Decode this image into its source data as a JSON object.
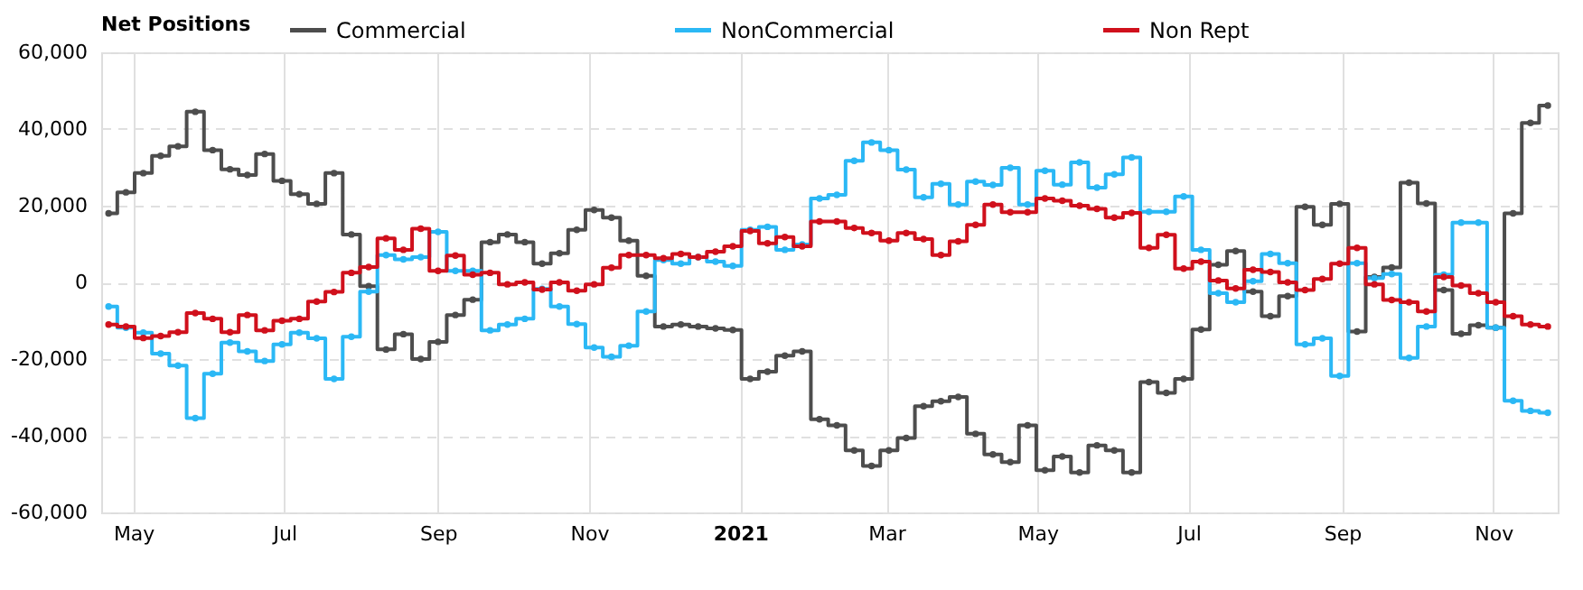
{
  "chart_data": {
    "type": "step",
    "legend_title": "Net Positions",
    "legend": "top",
    "grid": true,
    "marker": "circle",
    "line_style": "solid",
    "x": [
      "2020-04-21",
      "2020-04-28",
      "2020-05-05",
      "2020-05-12",
      "2020-05-19",
      "2020-05-26",
      "2020-06-02",
      "2020-06-09",
      "2020-06-16",
      "2020-06-23",
      "2020-06-30",
      "2020-07-07",
      "2020-07-14",
      "2020-07-21",
      "2020-07-28",
      "2020-08-04",
      "2020-08-11",
      "2020-08-18",
      "2020-08-25",
      "2020-09-01",
      "2020-09-08",
      "2020-09-15",
      "2020-09-22",
      "2020-09-29",
      "2020-10-06",
      "2020-10-13",
      "2020-10-20",
      "2020-10-27",
      "2020-11-03",
      "2020-11-10",
      "2020-11-17",
      "2020-11-24",
      "2020-12-01",
      "2020-12-08",
      "2020-12-15",
      "2020-12-22",
      "2020-12-29",
      "2021-01-05",
      "2021-01-12",
      "2021-01-19",
      "2021-01-26",
      "2021-02-02",
      "2021-02-09",
      "2021-02-16",
      "2021-02-23",
      "2021-03-02",
      "2021-03-09",
      "2021-03-16",
      "2021-03-23",
      "2021-03-30",
      "2021-04-06",
      "2021-04-13",
      "2021-04-20",
      "2021-04-27",
      "2021-05-04",
      "2021-05-11",
      "2021-05-18",
      "2021-05-25",
      "2021-06-01",
      "2021-06-08",
      "2021-06-15",
      "2021-06-22",
      "2021-06-29",
      "2021-07-06",
      "2021-07-13",
      "2021-07-20",
      "2021-07-27",
      "2021-08-03",
      "2021-08-10",
      "2021-08-17",
      "2021-08-24",
      "2021-08-31",
      "2021-09-07",
      "2021-09-14",
      "2021-09-21",
      "2021-09-28",
      "2021-10-05",
      "2021-10-12",
      "2021-10-19",
      "2021-10-26",
      "2021-11-02",
      "2021-11-09",
      "2021-11-16",
      "2021-11-23"
    ],
    "xlim": [
      "2020-04-18",
      "2021-11-27"
    ],
    "xticks": [
      {
        "value": "2020-05-01",
        "label": "May"
      },
      {
        "value": "2020-07-01",
        "label": "Jul"
      },
      {
        "value": "2020-09-01",
        "label": "Sep"
      },
      {
        "value": "2020-11-01",
        "label": "Nov"
      },
      {
        "value": "2021-01-01",
        "label": "2021"
      },
      {
        "value": "2021-03-01",
        "label": "Mar"
      },
      {
        "value": "2021-05-01",
        "label": "May"
      },
      {
        "value": "2021-07-01",
        "label": "Jul"
      },
      {
        "value": "2021-09-01",
        "label": "Sep"
      },
      {
        "value": "2021-11-01",
        "label": "Nov"
      }
    ],
    "ylim": [
      -60000,
      60000
    ],
    "yticks": [
      {
        "value": -60000,
        "label": "-60,000"
      },
      {
        "value": -40000,
        "label": "-40,000"
      },
      {
        "value": -20000,
        "label": "-20,000"
      },
      0,
      {
        "value": 20000,
        "label": "20,000"
      },
      {
        "value": 40000,
        "label": "40,000"
      },
      {
        "value": 60000,
        "label": "60,000"
      }
    ],
    "series": [
      {
        "name": "Commercial",
        "color": "#4d4d4d",
        "values": [
          18000,
          23500,
          28500,
          33000,
          35500,
          44500,
          34500,
          29500,
          28000,
          33500,
          26500,
          23000,
          20500,
          28500,
          12500,
          -1000,
          -17500,
          -13500,
          -20000,
          -15500,
          -8500,
          -4500,
          10500,
          12500,
          10500,
          4900,
          7600,
          13700,
          18900,
          16900,
          10900,
          1700,
          -11500,
          -11000,
          -11500,
          -12000,
          -12400,
          -25200,
          -23300,
          -19100,
          -18000,
          -35700,
          -37300,
          -43800,
          -47900,
          -43800,
          -40600,
          -32300,
          -31000,
          -29900,
          -39500,
          -44900,
          -46900,
          -37300,
          -49000,
          -45400,
          -49600,
          -42500,
          -43800,
          -49600,
          -26000,
          -28800,
          -25200,
          -12300,
          4600,
          8200,
          -2400,
          -8800,
          -3600,
          19700,
          15000,
          20500,
          -12800,
          1400,
          3900,
          26000,
          20600,
          -2000,
          -13400,
          -11200,
          -11800,
          18000,
          41600,
          46100
        ]
      },
      {
        "name": "NonCommercial",
        "color": "#2bb8f5",
        "values": [
          -6300,
          -11800,
          -13100,
          -18600,
          -21700,
          -35400,
          -23800,
          -15700,
          -18000,
          -20500,
          -16200,
          -13100,
          -14600,
          -25200,
          -14200,
          -2400,
          7100,
          6000,
          6600,
          13200,
          3000,
          3000,
          -12500,
          -11000,
          -9500,
          -1700,
          -6300,
          -10900,
          -17000,
          -19400,
          -16500,
          -7600,
          5800,
          4900,
          6600,
          5400,
          4300,
          13700,
          14500,
          8500,
          9900,
          21900,
          22800,
          31700,
          36500,
          34500,
          29400,
          22200,
          25700,
          20300,
          26300,
          25400,
          29900,
          20300,
          29100,
          25500,
          31300,
          24700,
          28200,
          32600,
          18400,
          18400,
          22400,
          8500,
          -2800,
          -5200,
          300,
          7400,
          5000,
          -16200,
          -14600,
          -24400,
          5000,
          1100,
          2200,
          -19700,
          -11500,
          2000,
          15600,
          15600,
          -11800,
          -30900,
          -33500,
          -34000
        ]
      },
      {
        "name": "Non Rept",
        "color": "#d0101c",
        "values": [
          -11000,
          -11500,
          -14500,
          -14000,
          -13000,
          -8000,
          -9500,
          -13000,
          -8500,
          -12500,
          -10000,
          -9500,
          -5000,
          -2500,
          2500,
          4000,
          11500,
          8500,
          14000,
          3000,
          7000,
          2000,
          2500,
          -500,
          0,
          -1900,
          0,
          -2200,
          -500,
          3800,
          7100,
          7100,
          6300,
          7400,
          6600,
          8000,
          9400,
          13400,
          10200,
          11800,
          9400,
          15900,
          15900,
          14200,
          12900,
          10900,
          12900,
          11300,
          7100,
          10700,
          15000,
          20300,
          18300,
          18300,
          21900,
          21300,
          20000,
          19200,
          16900,
          18100,
          9000,
          12400,
          3600,
          5400,
          500,
          -1600,
          3300,
          2700,
          0,
          -2000,
          900,
          4900,
          9000,
          -500,
          -4600,
          -5200,
          -7600,
          1400,
          -800,
          -2800,
          -5200,
          -8800,
          -11000,
          -11500
        ]
      }
    ]
  }
}
